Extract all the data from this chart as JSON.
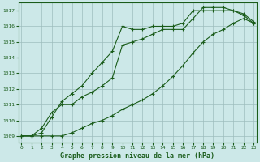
{
  "title": "Graphe pression niveau de la mer (hPa)",
  "bg_color": "#cce8e8",
  "plot_bg_color": "#cce8e8",
  "grid_color": "#9dbdbd",
  "line_color": "#1a5c1a",
  "xlim": [
    -0.3,
    23.3
  ],
  "ylim": [
    1008.6,
    1017.5
  ],
  "xticks": [
    0,
    1,
    2,
    3,
    4,
    5,
    6,
    7,
    8,
    9,
    10,
    11,
    12,
    13,
    14,
    15,
    16,
    17,
    18,
    19,
    20,
    21,
    22,
    23
  ],
  "yticks": [
    1009,
    1010,
    1011,
    1012,
    1013,
    1014,
    1015,
    1016,
    1017
  ],
  "series1": [
    1009.0,
    1009.0,
    1009.2,
    1010.2,
    1011.2,
    1011.7,
    1012.2,
    1013.0,
    1013.7,
    1014.4,
    1016.0,
    1015.8,
    1015.8,
    1016.0,
    1016.0,
    1016.0,
    1016.2,
    1017.0,
    1017.0,
    1017.0,
    1017.0,
    1017.0,
    1016.8,
    1016.3
  ],
  "series2": [
    1009.0,
    1009.0,
    1009.5,
    1010.5,
    1011.0,
    1011.0,
    1011.5,
    1011.8,
    1012.2,
    1012.7,
    1014.8,
    1015.0,
    1015.2,
    1015.5,
    1015.8,
    1015.8,
    1015.8,
    1016.5,
    1017.2,
    1017.2,
    1017.2,
    1017.0,
    1016.7,
    1016.2
  ],
  "series3": [
    1009.0,
    1009.0,
    1009.0,
    1009.0,
    1009.0,
    1009.2,
    1009.5,
    1009.8,
    1010.0,
    1010.3,
    1010.7,
    1011.0,
    1011.3,
    1011.7,
    1012.2,
    1012.8,
    1013.5,
    1014.3,
    1015.0,
    1015.5,
    1015.8,
    1016.2,
    1016.5,
    1016.2
  ]
}
